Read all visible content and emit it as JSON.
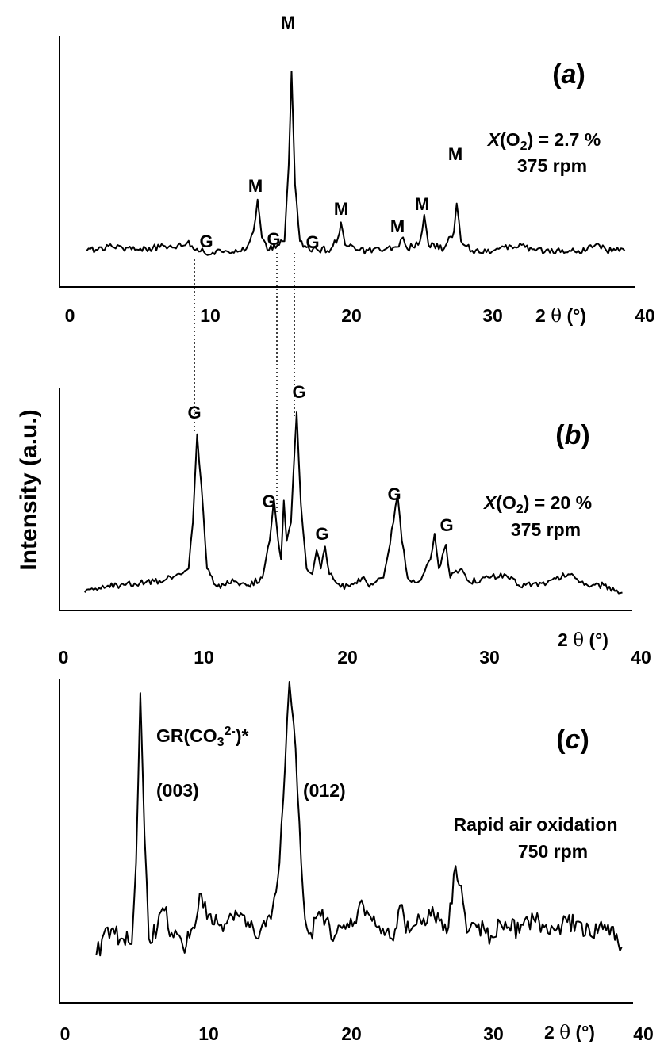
{
  "y_axis_label": "Intensity (a.u.)",
  "x_ticks": [
    "0",
    "10",
    "20",
    "30",
    "40"
  ],
  "x_label_prefix": "2 ",
  "x_label_theta": "θ",
  "x_label_suffix": " (°)",
  "panels": [
    {
      "letter": "a",
      "conditions": [
        "X(O2) = 2.7 %",
        "375 rpm"
      ],
      "peak_labels": [
        {
          "text": "M",
          "x": 15.7
        },
        {
          "text": "M",
          "x": 13.3
        },
        {
          "text": "M",
          "x": 19.2
        },
        {
          "text": "M",
          "x": 23.6
        },
        {
          "text": "M",
          "x": 25.1
        },
        {
          "text": "M",
          "x": 27.4
        },
        {
          "text": "G",
          "x": 10.0
        },
        {
          "text": "G",
          "x": 14.8
        },
        {
          "text": "G",
          "x": 17.2
        }
      ]
    },
    {
      "letter": "b",
      "conditions": [
        "X(O2) = 20 %",
        "375 rpm"
      ],
      "peak_labels": [
        {
          "text": "G",
          "x": 9.4
        },
        {
          "text": "G",
          "x": 16.4
        },
        {
          "text": "G",
          "x": 14.5
        },
        {
          "text": "G",
          "x": 18.6
        },
        {
          "text": "G",
          "x": 23.5
        },
        {
          "text": "G",
          "x": 26.5
        }
      ]
    },
    {
      "letter": "c",
      "conditions": [
        "Rapid air oxidation",
        "750 rpm"
      ],
      "annotations": [
        "GR(CO32-)*",
        "(003)",
        "(012)"
      ]
    }
  ],
  "chart_data": [
    {
      "type": "line",
      "panel": "a",
      "xlim": [
        0,
        40
      ],
      "series": [
        {
          "points": [
            [
              1.2,
              0.05
            ],
            [
              3,
              0.07
            ],
            [
              5,
              0.06
            ],
            [
              7,
              0.07
            ],
            [
              8.3,
              0.09
            ],
            [
              9,
              0.06
            ],
            [
              10,
              0.03
            ],
            [
              11,
              0.05
            ],
            [
              12.5,
              0.06
            ],
            [
              13,
              0.15
            ],
            [
              13.3,
              0.32
            ],
            [
              13.6,
              0.12
            ],
            [
              14,
              0.05
            ],
            [
              14.7,
              0.08
            ],
            [
              15.2,
              0.1
            ],
            [
              15.5,
              0.5
            ],
            [
              15.7,
              1.0
            ],
            [
              15.95,
              0.4
            ],
            [
              16.3,
              0.1
            ],
            [
              17,
              0.05
            ],
            [
              18.5,
              0.06
            ],
            [
              19,
              0.12
            ],
            [
              19.2,
              0.2
            ],
            [
              19.5,
              0.08
            ],
            [
              20.5,
              0.05
            ],
            [
              22,
              0.05
            ],
            [
              23.3,
              0.07
            ],
            [
              23.6,
              0.12
            ],
            [
              23.9,
              0.06
            ],
            [
              24.8,
              0.1
            ],
            [
              25.1,
              0.24
            ],
            [
              25.4,
              0.08
            ],
            [
              26.5,
              0.06
            ],
            [
              27.2,
              0.15
            ],
            [
              27.4,
              0.3
            ],
            [
              27.7,
              0.1
            ],
            [
              28.5,
              0.05
            ],
            [
              30,
              0.05
            ],
            [
              32,
              0.08
            ],
            [
              33,
              0.05
            ],
            [
              36,
              0.05
            ],
            [
              37.5,
              0.08
            ],
            [
              38,
              0.05
            ],
            [
              39.3,
              0.05
            ]
          ]
        }
      ]
    },
    {
      "type": "line",
      "panel": "b",
      "xlim": [
        0,
        40
      ],
      "series": [
        {
          "points": [
            [
              1.5,
              0.02
            ],
            [
              3,
              0.05
            ],
            [
              5,
              0.07
            ],
            [
              7,
              0.08
            ],
            [
              8,
              0.12
            ],
            [
              8.8,
              0.15
            ],
            [
              9.1,
              0.4
            ],
            [
              9.4,
              0.88
            ],
            [
              9.7,
              0.6
            ],
            [
              10.1,
              0.15
            ],
            [
              10.8,
              0.05
            ],
            [
              12,
              0.08
            ],
            [
              13,
              0.06
            ],
            [
              14,
              0.1
            ],
            [
              14.5,
              0.3
            ],
            [
              14.8,
              0.53
            ],
            [
              15.1,
              0.3
            ],
            [
              15.3,
              0.2
            ],
            [
              15.5,
              0.52
            ],
            [
              15.7,
              0.3
            ],
            [
              16,
              0.4
            ],
            [
              16.4,
              1.0
            ],
            [
              16.7,
              0.5
            ],
            [
              17.1,
              0.15
            ],
            [
              17.5,
              0.12
            ],
            [
              17.8,
              0.25
            ],
            [
              18.1,
              0.15
            ],
            [
              18.4,
              0.27
            ],
            [
              18.7,
              0.12
            ],
            [
              19.5,
              0.05
            ],
            [
              20,
              0.06
            ],
            [
              21,
              0.1
            ],
            [
              21.5,
              0.05
            ],
            [
              22.5,
              0.1
            ],
            [
              23.2,
              0.4
            ],
            [
              23.5,
              0.55
            ],
            [
              23.8,
              0.3
            ],
            [
              24.2,
              0.1
            ],
            [
              25,
              0.08
            ],
            [
              25.8,
              0.2
            ],
            [
              26.1,
              0.34
            ],
            [
              26.4,
              0.15
            ],
            [
              26.9,
              0.28
            ],
            [
              27.2,
              0.1
            ],
            [
              28,
              0.15
            ],
            [
              28.5,
              0.08
            ],
            [
              30,
              0.1
            ],
            [
              31,
              0.12
            ],
            [
              32,
              0.06
            ],
            [
              34,
              0.07
            ],
            [
              35.5,
              0.12
            ],
            [
              36.5,
              0.08
            ],
            [
              37,
              0.05
            ],
            [
              38,
              0.06
            ],
            [
              39.3,
              0.02
            ]
          ]
        }
      ]
    },
    {
      "type": "line",
      "panel": "c",
      "xlim": [
        0,
        40
      ],
      "series": [
        {
          "points": [
            [
              2.2,
              0.02
            ],
            [
              3,
              0.12
            ],
            [
              4,
              0.08
            ],
            [
              4.7,
              0.06
            ],
            [
              5.0,
              0.35
            ],
            [
              5.3,
              0.96
            ],
            [
              5.6,
              0.45
            ],
            [
              5.9,
              0.08
            ],
            [
              6.5,
              0.12
            ],
            [
              7,
              0.18
            ],
            [
              7.5,
              0.1
            ],
            [
              8.3,
              0.05
            ],
            [
              9,
              0.12
            ],
            [
              9.6,
              0.24
            ],
            [
              10,
              0.15
            ],
            [
              11,
              0.13
            ],
            [
              12,
              0.18
            ],
            [
              13,
              0.12
            ],
            [
              13.5,
              0.08
            ],
            [
              14.5,
              0.15
            ],
            [
              15.1,
              0.35
            ],
            [
              15.5,
              0.7
            ],
            [
              15.8,
              1.0
            ],
            [
              16.1,
              0.85
            ],
            [
              16.5,
              0.5
            ],
            [
              16.9,
              0.15
            ],
            [
              17.3,
              0.1
            ],
            [
              18,
              0.16
            ],
            [
              19,
              0.09
            ],
            [
              20,
              0.12
            ],
            [
              21,
              0.2
            ],
            [
              22,
              0.12
            ],
            [
              23,
              0.08
            ],
            [
              23.6,
              0.2
            ],
            [
              24,
              0.1
            ],
            [
              25,
              0.15
            ],
            [
              26,
              0.16
            ],
            [
              27,
              0.12
            ],
            [
              27.5,
              0.34
            ],
            [
              27.9,
              0.27
            ],
            [
              28.3,
              0.1
            ],
            [
              29,
              0.12
            ],
            [
              30,
              0.09
            ],
            [
              31,
              0.14
            ],
            [
              32,
              0.1
            ],
            [
              33,
              0.15
            ],
            [
              34,
              0.1
            ],
            [
              35,
              0.13
            ],
            [
              36,
              0.14
            ],
            [
              37,
              0.09
            ],
            [
              38,
              0.13
            ],
            [
              39.2,
              0.05
            ]
          ]
        }
      ]
    }
  ]
}
